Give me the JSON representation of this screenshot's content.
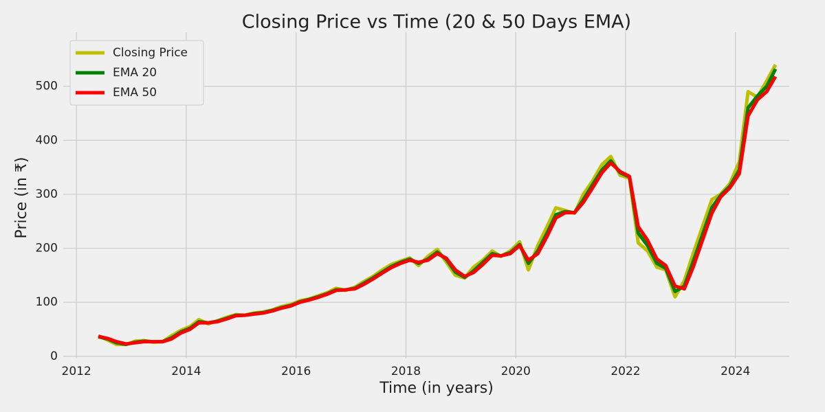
{
  "chart_data": {
    "type": "line",
    "title": "Closing Price vs Time (20 & 50 Days EMA)",
    "x_label": "Time (in years)",
    "y_label": "Price (in ₹)",
    "x": [
      2012.4,
      2012.57,
      2012.73,
      2012.9,
      2013.07,
      2013.23,
      2013.4,
      2013.57,
      2013.73,
      2013.9,
      2014.07,
      2014.23,
      2014.4,
      2014.57,
      2014.73,
      2014.9,
      2015.07,
      2015.23,
      2015.4,
      2015.57,
      2015.73,
      2015.9,
      2016.07,
      2016.23,
      2016.4,
      2016.57,
      2016.73,
      2016.9,
      2017.07,
      2017.23,
      2017.4,
      2017.57,
      2017.73,
      2017.9,
      2018.07,
      2018.23,
      2018.4,
      2018.57,
      2018.73,
      2018.9,
      2019.07,
      2019.23,
      2019.4,
      2019.57,
      2019.73,
      2019.9,
      2020.07,
      2020.23,
      2020.4,
      2020.57,
      2020.73,
      2020.9,
      2021.07,
      2021.23,
      2021.4,
      2021.57,
      2021.73,
      2021.9,
      2022.07,
      2022.23,
      2022.4,
      2022.57,
      2022.73,
      2022.9,
      2023.07,
      2023.23,
      2023.4,
      2023.57,
      2023.73,
      2023.9,
      2024.07,
      2024.23,
      2024.4,
      2024.57,
      2024.73
    ],
    "series": [
      {
        "name": "Closing Price",
        "color": "#bfbf00",
        "values": [
          38,
          30,
          22,
          22,
          28,
          29,
          26,
          27,
          38,
          48,
          55,
          68,
          60,
          66,
          72,
          77,
          76,
          80,
          82,
          86,
          92,
          96,
          103,
          106,
          112,
          118,
          126,
          122,
          128,
          138,
          148,
          160,
          170,
          176,
          182,
          168,
          185,
          198,
          175,
          150,
          145,
          165,
          178,
          195,
          185,
          195,
          212,
          160,
          205,
          240,
          275,
          270,
          265,
          300,
          325,
          355,
          370,
          335,
          330,
          210,
          195,
          165,
          160,
          110,
          140,
          190,
          240,
          290,
          300,
          320,
          360,
          490,
          480,
          510,
          540
        ]
      },
      {
        "name": "EMA 20",
        "color": "#008000",
        "values": [
          36,
          32,
          25,
          22,
          26,
          28,
          27,
          27,
          34,
          45,
          52,
          64,
          62,
          65,
          70,
          76,
          76,
          79,
          81,
          85,
          90,
          94,
          101,
          105,
          110,
          116,
          123,
          123,
          126,
          135,
          145,
          156,
          166,
          174,
          180,
          172,
          180,
          193,
          180,
          156,
          146,
          158,
          174,
          190,
          186,
          192,
          207,
          172,
          195,
          228,
          262,
          268,
          266,
          290,
          318,
          345,
          362,
          340,
          332,
          228,
          205,
          172,
          163,
          120,
          130,
          175,
          225,
          275,
          298,
          315,
          345,
          460,
          482,
          500,
          532
        ]
      },
      {
        "name": "EMA 50",
        "color": "#ff0000",
        "values": [
          37,
          33,
          27,
          23,
          25,
          27,
          27,
          27,
          32,
          43,
          50,
          62,
          62,
          64,
          69,
          75,
          76,
          78,
          80,
          84,
          89,
          93,
          100,
          104,
          109,
          115,
          122,
          123,
          125,
          133,
          143,
          154,
          164,
          172,
          178,
          174,
          178,
          190,
          182,
          160,
          148,
          155,
          170,
          187,
          186,
          190,
          205,
          178,
          190,
          222,
          256,
          266,
          266,
          285,
          312,
          340,
          358,
          342,
          333,
          240,
          215,
          180,
          168,
          130,
          125,
          165,
          215,
          265,
          295,
          312,
          338,
          445,
          475,
          490,
          518
        ]
      }
    ],
    "xlim": [
      2011.76,
      2024.98
    ],
    "xticks": [
      2012,
      2014,
      2016,
      2018,
      2020,
      2022,
      2024
    ],
    "ylim": [
      -4,
      600
    ],
    "yticks": [
      0,
      100,
      200,
      300,
      400,
      500
    ],
    "grid": true,
    "legend": "upper left"
  }
}
